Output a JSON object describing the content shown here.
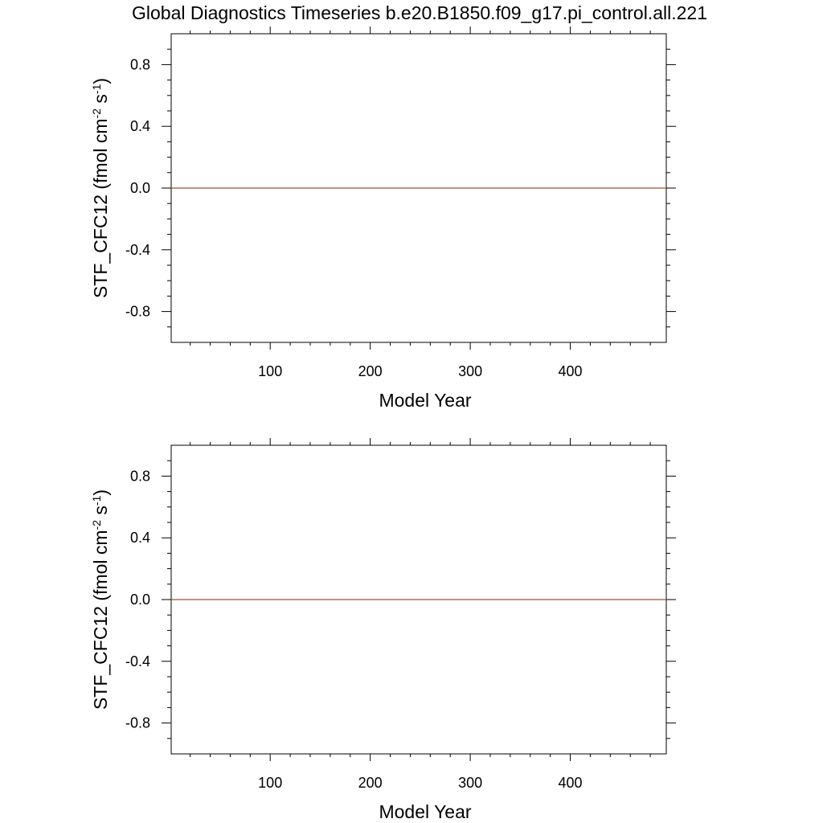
{
  "title": "Global Diagnostics Timeseries b.e20.B1850.f09_g17.pi_control.all.221",
  "colors": {
    "line": "#a0522d",
    "axis": "#000000"
  },
  "chart_data": [
    {
      "type": "line",
      "xlabel": "Model Year",
      "ylabel": {
        "main": "STF_CFC12 (fmol cm",
        "exp1": "-2",
        "mid": " s",
        "exp2": "-1",
        "end": ")"
      },
      "xlim": [
        1,
        496
      ],
      "ylim": [
        -1.0,
        1.0
      ],
      "xticks": [
        100,
        200,
        300,
        400
      ],
      "yticks": [
        -0.8,
        -0.4,
        0.0,
        0.4,
        0.8
      ],
      "ytick_labels": [
        "-0.8",
        "-0.4",
        "0.0",
        "0.4",
        "0.8"
      ],
      "series": [
        {
          "x": [
            1,
            496
          ],
          "values": [
            0.0,
            0.0
          ]
        }
      ]
    },
    {
      "type": "line",
      "xlabel": "Model Year",
      "ylabel": {
        "main": "STF_CFC12 (fmol cm",
        "exp1": "-2",
        "mid": " s",
        "exp2": "-1",
        "end": ")"
      },
      "xlim": [
        1,
        496
      ],
      "ylim": [
        -1.0,
        1.0
      ],
      "xticks": [
        100,
        200,
        300,
        400
      ],
      "yticks": [
        -0.8,
        -0.4,
        0.0,
        0.4,
        0.8
      ],
      "ytick_labels": [
        "-0.8",
        "-0.4",
        "0.0",
        "0.4",
        "0.8"
      ],
      "series": [
        {
          "x": [
            1,
            496
          ],
          "values": [
            0.0,
            0.0
          ]
        }
      ]
    }
  ]
}
